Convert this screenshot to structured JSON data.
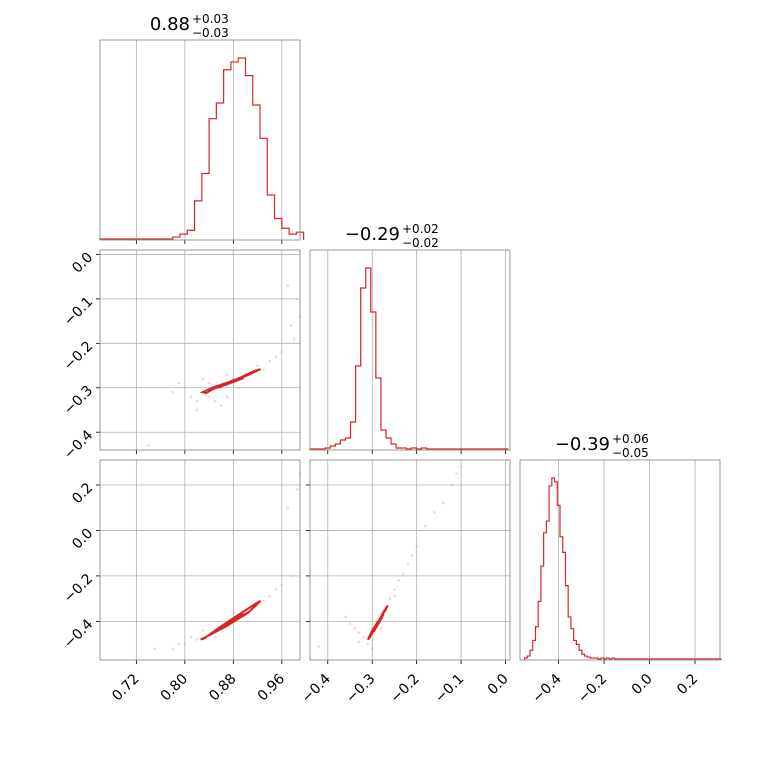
{
  "chart_data": {
    "type": "corner",
    "color": "#d62728",
    "parameters": [
      {
        "median": "0.88",
        "plus": "+0.03",
        "minus": "−0.03",
        "range": [
          0.66,
          0.99
        ],
        "ticks": [
          0.72,
          0.8,
          0.88,
          0.96
        ],
        "tick_labels": [
          "0.72",
          "0.80",
          "0.88",
          "0.96"
        ],
        "hist": {
          "bins": [
            0.66,
            0.672,
            0.684,
            0.696,
            0.708,
            0.72,
            0.732,
            0.744,
            0.756,
            0.768,
            0.78,
            0.792,
            0.804,
            0.816,
            0.828,
            0.84,
            0.852,
            0.864,
            0.876,
            0.888,
            0.9,
            0.912,
            0.924,
            0.936,
            0.948,
            0.96,
            0.972,
            0.984
          ],
          "counts": [
            0.005,
            0.005,
            0.005,
            0.005,
            0.005,
            0.005,
            0.005,
            0.005,
            0.005,
            0.005,
            0.015,
            0.03,
            0.05,
            0.2,
            0.34,
            0.62,
            0.7,
            0.87,
            0.91,
            0.93,
            0.84,
            0.69,
            0.52,
            0.23,
            0.11,
            0.06,
            0.03,
            0.04
          ]
        }
      },
      {
        "median": "−0.29",
        "plus": "+0.02",
        "minus": "−0.02",
        "range": [
          -0.44,
          0.01
        ],
        "ticks": [
          -0.4,
          -0.3,
          -0.2,
          -0.1,
          0.0
        ],
        "tick_labels": [
          "−0.4",
          "−0.3",
          "−0.2",
          "−0.1",
          "0.0"
        ],
        "hist": {
          "bins": [
            -0.44,
            -0.4286,
            -0.4172,
            -0.4058,
            -0.3944,
            -0.383,
            -0.3716,
            -0.3602,
            -0.3488,
            -0.3374,
            -0.326,
            -0.3146,
            -0.3032,
            -0.2918,
            -0.2804,
            -0.269,
            -0.2576,
            -0.2462,
            -0.2348,
            -0.2234,
            -0.212,
            -0.2006,
            -0.1892,
            -0.1778,
            -0.1664,
            -0.155,
            -0.1436,
            -0.1322,
            -0.1208,
            -0.1094,
            -0.098,
            -0.0866,
            -0.0752,
            -0.0638,
            -0.0524,
            -0.041,
            -0.0296,
            -0.0182,
            -0.0068
          ],
          "counts": [
            0.005,
            0.005,
            0.005,
            0.01,
            0.02,
            0.03,
            0.05,
            0.06,
            0.14,
            0.42,
            0.81,
            0.91,
            0.69,
            0.36,
            0.1,
            0.06,
            0.03,
            0.01,
            0.01,
            0.005,
            0.01,
            0.005,
            0.01,
            0.005,
            0.005,
            0.005,
            0.005,
            0.005,
            0.005,
            0.005,
            0.005,
            0.005,
            0.005,
            0.005,
            0.005,
            0.005,
            0.005,
            0.005,
            0.005
          ]
        }
      },
      {
        "median": "−0.39",
        "plus": "+0.06",
        "minus": "−0.05",
        "range": [
          -0.57,
          0.31
        ],
        "ticks": [
          -0.4,
          -0.2,
          0.0,
          0.2
        ],
        "tick_labels": [
          "−0.4",
          "−0.2",
          "0.0",
          "0.2"
        ],
        "hist": {
          "bins": [
            -0.55,
            -0.538,
            -0.526,
            -0.514,
            -0.502,
            -0.49,
            -0.478,
            -0.466,
            -0.454,
            -0.442,
            -0.43,
            -0.418,
            -0.406,
            -0.394,
            -0.382,
            -0.37,
            -0.358,
            -0.346,
            -0.334,
            -0.322,
            -0.31,
            -0.298,
            -0.286,
            -0.274,
            -0.262,
            -0.25,
            -0.238,
            -0.226,
            -0.214,
            -0.202,
            -0.19,
            -0.178,
            -0.166,
            -0.154,
            -0.142,
            -0.13,
            -0.118,
            -0.106,
            -0.094,
            -0.082,
            -0.07,
            -0.058,
            -0.046,
            -0.034,
            -0.022,
            -0.01,
            0.002,
            0.014,
            0.026,
            0.038,
            0.05,
            0.062,
            0.074,
            0.086,
            0.098,
            0.11,
            0.122,
            0.134,
            0.146,
            0.158,
            0.17,
            0.182,
            0.194,
            0.206,
            0.218,
            0.23,
            0.242,
            0.254,
            0.266,
            0.278,
            0.29,
            0.302
          ],
          "counts": [
            0.01,
            0.02,
            0.05,
            0.1,
            0.17,
            0.3,
            0.48,
            0.65,
            0.71,
            0.89,
            0.93,
            0.91,
            0.79,
            0.63,
            0.55,
            0.38,
            0.22,
            0.16,
            0.1,
            0.08,
            0.05,
            0.03,
            0.02,
            0.015,
            0.01,
            0.01,
            0.01,
            0.005,
            0.01,
            0.005,
            0.01,
            0.005,
            0.01,
            0.005,
            0.005,
            0.005,
            0.005,
            0.005,
            0.005,
            0.005,
            0.005,
            0.005,
            0.005,
            0.005,
            0.005,
            0.005,
            0.005,
            0.005,
            0.005,
            0.005,
            0.005,
            0.005,
            0.005,
            0.005,
            0.005,
            0.005,
            0.005,
            0.005,
            0.005,
            0.005,
            0.005,
            0.005,
            0.005,
            0.005,
            0.005,
            0.005,
            0.005,
            0.005,
            0.005,
            0.005,
            0.005,
            0.005
          ]
        }
      }
    ],
    "pairs": [
      {
        "x": 0,
        "y": 1,
        "contours": [
          [
            [
              0.829,
              -0.31
            ],
            [
              0.845,
              -0.3
            ],
            [
              0.862,
              -0.292
            ],
            [
              0.88,
              -0.284
            ],
            [
              0.9,
              -0.274
            ],
            [
              0.925,
              -0.258
            ],
            [
              0.915,
              -0.262
            ],
            [
              0.89,
              -0.278
            ],
            [
              0.868,
              -0.29
            ],
            [
              0.848,
              -0.302
            ],
            [
              0.835,
              -0.312
            ],
            [
              0.829,
              -0.31
            ]
          ],
          [
            [
              0.852,
              -0.3
            ],
            [
              0.866,
              -0.294
            ],
            [
              0.882,
              -0.286
            ],
            [
              0.897,
              -0.278
            ],
            [
              0.89,
              -0.278
            ],
            [
              0.872,
              -0.29
            ],
            [
              0.858,
              -0.298
            ],
            [
              0.852,
              -0.3
            ]
          ],
          [
            [
              0.868,
              -0.291
            ],
            [
              0.88,
              -0.286
            ],
            [
              0.889,
              -0.28
            ],
            [
              0.878,
              -0.284
            ],
            [
              0.868,
              -0.291
            ]
          ]
        ],
        "points": [
          [
            0.83,
            -0.31
          ],
          [
            0.84,
            -0.32
          ],
          [
            0.86,
            -0.3
          ],
          [
            0.88,
            -0.28
          ],
          [
            0.9,
            -0.27
          ],
          [
            0.92,
            -0.25
          ],
          [
            0.94,
            -0.24
          ],
          [
            0.96,
            -0.22
          ],
          [
            0.975,
            -0.16
          ],
          [
            0.985,
            -0.1
          ],
          [
            0.97,
            -0.07
          ],
          [
            0.82,
            -0.33
          ],
          [
            0.81,
            -0.32
          ],
          [
            0.8,
            -0.3
          ],
          [
            0.79,
            -0.29
          ],
          [
            0.85,
            -0.33
          ],
          [
            0.87,
            -0.32
          ],
          [
            0.89,
            -0.3
          ],
          [
            0.91,
            -0.27
          ],
          [
            0.93,
            -0.26
          ],
          [
            0.86,
            -0.34
          ],
          [
            0.78,
            -0.31
          ],
          [
            0.74,
            -0.43
          ],
          [
            0.82,
            -0.35
          ],
          [
            0.84,
            -0.29
          ],
          [
            0.95,
            -0.23
          ],
          [
            0.98,
            -0.19
          ],
          [
            0.99,
            -0.14
          ],
          [
            0.83,
            -0.28
          ],
          [
            0.87,
            -0.27
          ]
        ]
      },
      {
        "x": 0,
        "y": 2,
        "contours": [
          [
            [
              0.826,
              -0.48
            ],
            [
              0.845,
              -0.455
            ],
            [
              0.865,
              -0.425
            ],
            [
              0.885,
              -0.39
            ],
            [
              0.905,
              -0.36
            ],
            [
              0.925,
              -0.31
            ],
            [
              0.918,
              -0.32
            ],
            [
              0.895,
              -0.36
            ],
            [
              0.872,
              -0.4
            ],
            [
              0.85,
              -0.44
            ],
            [
              0.832,
              -0.475
            ],
            [
              0.826,
              -0.48
            ]
          ],
          [
            [
              0.848,
              -0.45
            ],
            [
              0.866,
              -0.425
            ],
            [
              0.884,
              -0.395
            ],
            [
              0.9,
              -0.37
            ],
            [
              0.893,
              -0.37
            ],
            [
              0.873,
              -0.405
            ],
            [
              0.855,
              -0.44
            ],
            [
              0.848,
              -0.45
            ]
          ],
          [
            [
              0.864,
              -0.428
            ],
            [
              0.878,
              -0.405
            ],
            [
              0.89,
              -0.385
            ],
            [
              0.88,
              -0.395
            ],
            [
              0.864,
              -0.428
            ]
          ]
        ],
        "points": [
          [
            0.8,
            -0.5
          ],
          [
            0.82,
            -0.48
          ],
          [
            0.84,
            -0.46
          ],
          [
            0.86,
            -0.43
          ],
          [
            0.88,
            -0.4
          ],
          [
            0.9,
            -0.36
          ],
          [
            0.92,
            -0.33
          ],
          [
            0.94,
            -0.29
          ],
          [
            0.96,
            -0.24
          ],
          [
            0.975,
            -0.2
          ],
          [
            0.985,
            0.18
          ],
          [
            0.99,
            0.25
          ],
          [
            0.97,
            0.1
          ],
          [
            0.78,
            -0.52
          ],
          [
            0.79,
            -0.5
          ],
          [
            0.81,
            -0.47
          ],
          [
            0.83,
            -0.44
          ],
          [
            0.85,
            -0.47
          ],
          [
            0.87,
            -0.42
          ],
          [
            0.89,
            -0.37
          ],
          [
            0.91,
            -0.34
          ],
          [
            0.93,
            -0.31
          ],
          [
            0.95,
            -0.26
          ],
          [
            0.75,
            -0.52
          ]
        ]
      },
      {
        "x": 1,
        "y": 2,
        "contours": [
          [
            [
              -0.31,
              -0.48
            ],
            [
              -0.3,
              -0.44
            ],
            [
              -0.29,
              -0.41
            ],
            [
              -0.28,
              -0.38
            ],
            [
              -0.27,
              -0.35
            ],
            [
              -0.265,
              -0.33
            ],
            [
              -0.275,
              -0.36
            ],
            [
              -0.285,
              -0.4
            ],
            [
              -0.295,
              -0.43
            ],
            [
              -0.305,
              -0.47
            ],
            [
              -0.31,
              -0.48
            ]
          ],
          [
            [
              -0.3,
              -0.45
            ],
            [
              -0.29,
              -0.42
            ],
            [
              -0.28,
              -0.39
            ],
            [
              -0.275,
              -0.37
            ],
            [
              -0.283,
              -0.4
            ],
            [
              -0.295,
              -0.44
            ],
            [
              -0.3,
              -0.45
            ]
          ],
          [
            [
              -0.295,
              -0.43
            ],
            [
              -0.285,
              -0.4
            ],
            [
              -0.28,
              -0.385
            ],
            [
              -0.29,
              -0.41
            ],
            [
              -0.295,
              -0.43
            ]
          ]
        ],
        "points": [
          [
            -0.32,
            -0.47
          ],
          [
            -0.33,
            -0.45
          ],
          [
            -0.34,
            -0.43
          ],
          [
            -0.31,
            -0.5
          ],
          [
            -0.3,
            -0.45
          ],
          [
            -0.29,
            -0.4
          ],
          [
            -0.28,
            -0.37
          ],
          [
            -0.27,
            -0.34
          ],
          [
            -0.26,
            -0.3
          ],
          [
            -0.25,
            -0.26
          ],
          [
            -0.24,
            -0.22
          ],
          [
            -0.22,
            -0.15
          ],
          [
            -0.2,
            -0.07
          ],
          [
            -0.18,
            0.02
          ],
          [
            -0.16,
            0.08
          ],
          [
            -0.14,
            0.12
          ],
          [
            -0.12,
            0.2
          ],
          [
            -0.11,
            0.25
          ],
          [
            -0.1,
            0.28
          ],
          [
            -0.35,
            -0.41
          ],
          [
            -0.36,
            -0.38
          ],
          [
            -0.33,
            -0.49
          ],
          [
            -0.28,
            -0.43
          ],
          [
            -0.25,
            -0.29
          ],
          [
            -0.23,
            -0.19
          ],
          [
            -0.21,
            -0.11
          ],
          [
            -0.42,
            -0.51
          ],
          [
            -0.3,
            -0.52
          ]
        ]
      }
    ]
  }
}
